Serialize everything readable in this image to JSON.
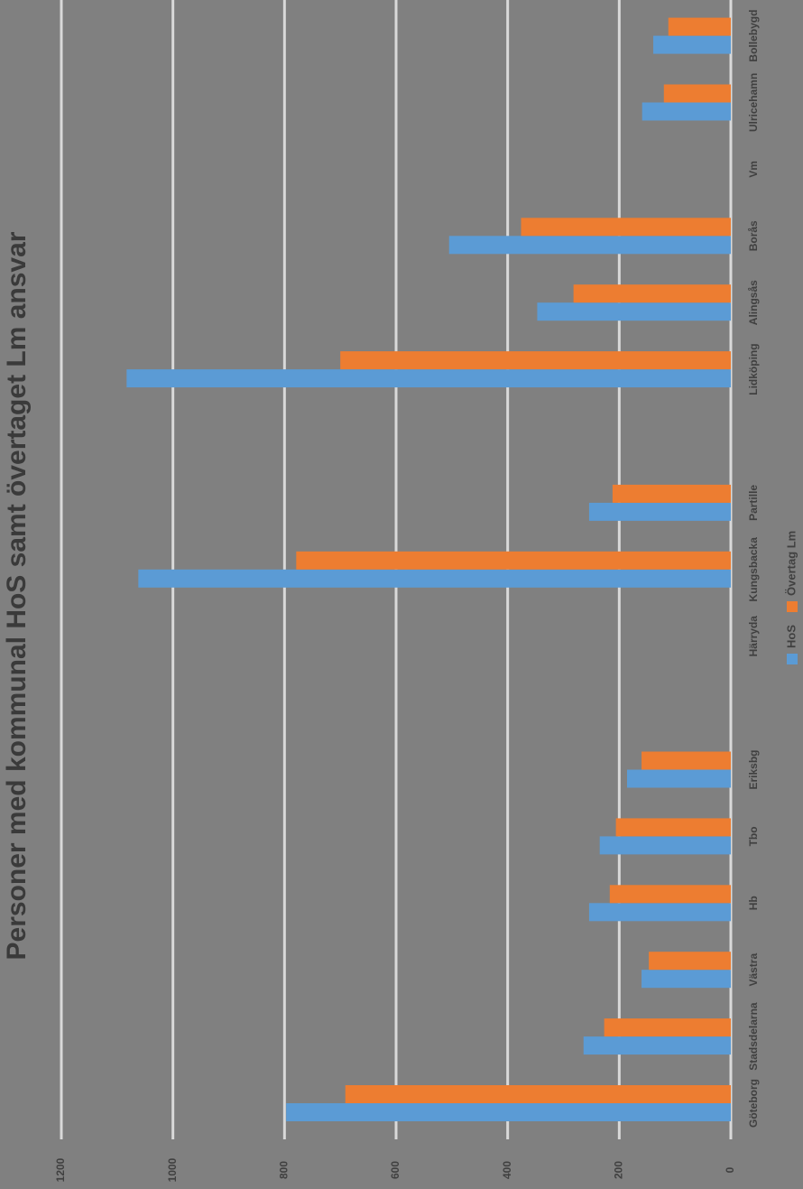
{
  "chart_data": {
    "type": "bar",
    "orientation": "horizontal",
    "title": "Personer med kommunal HoS samt övertaget Lm ansvar",
    "categories": [
      "Göteborg",
      "Stadsdelarna",
      "Västra",
      "Hb",
      "Tbo",
      "Eriksbg",
      null,
      "Härryda",
      "Kungsbacka",
      "Partille",
      null,
      "Lidköping",
      "Alingsås",
      "Borås",
      "Vm",
      "Ulricehamn",
      "Bollebygd"
    ],
    "series": [
      {
        "name": "HoS",
        "color": "#5b9bd5",
        "values": [
          797,
          264,
          160,
          254,
          235,
          186,
          null,
          null,
          1062,
          254,
          null,
          1083,
          347,
          505,
          null,
          159,
          139
        ]
      },
      {
        "name": "Övertag Lm",
        "color": "#ed7d31",
        "values": [
          691,
          227,
          147,
          217,
          206,
          160,
          null,
          null,
          779,
          212,
          null,
          700,
          282,
          376,
          null,
          120,
          112
        ]
      }
    ],
    "ylim": [
      0,
      1200
    ],
    "yticks": [
      0,
      200,
      400,
      600,
      800,
      1000,
      1200
    ],
    "grid": true,
    "legend": "bottom"
  }
}
